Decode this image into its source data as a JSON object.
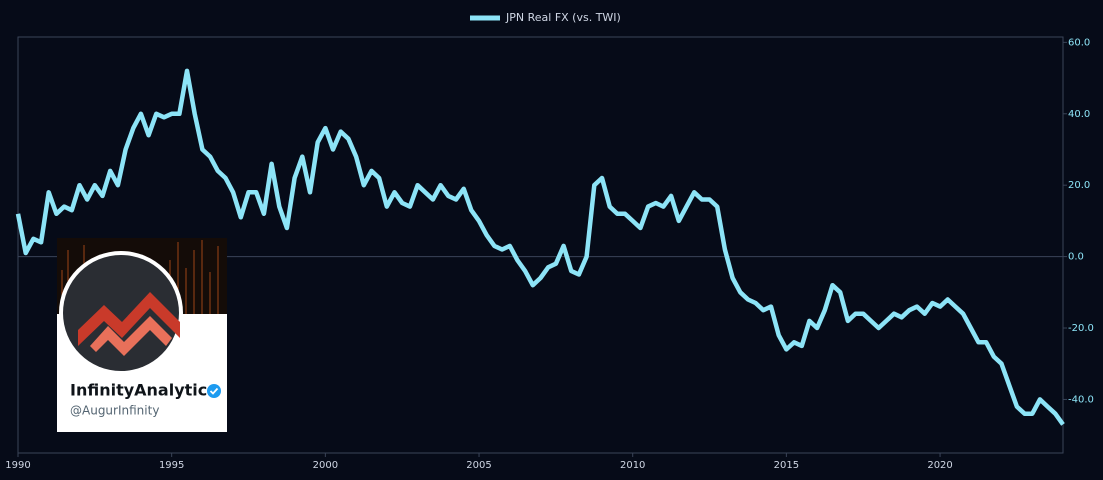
{
  "chart_data": {
    "type": "line",
    "x": [
      1990,
      1990.25,
      1990.5,
      1990.75,
      1991,
      1991.25,
      1991.5,
      1991.75,
      1992,
      1992.25,
      1992.5,
      1992.75,
      1993,
      1993.25,
      1993.5,
      1993.75,
      1994,
      1994.25,
      1994.5,
      1994.75,
      1995,
      1995.25,
      1995.5,
      1995.75,
      1996,
      1996.25,
      1996.5,
      1996.75,
      1997,
      1997.25,
      1997.5,
      1997.75,
      1998,
      1998.25,
      1998.5,
      1998.75,
      1999,
      1999.25,
      1999.5,
      1999.75,
      2000,
      2000.25,
      2000.5,
      2000.75,
      2001,
      2001.25,
      2001.5,
      2001.75,
      2002,
      2002.25,
      2002.5,
      2002.75,
      2003,
      2003.25,
      2003.5,
      2003.75,
      2004,
      2004.25,
      2004.5,
      2004.75,
      2005,
      2005.25,
      2005.5,
      2005.75,
      2006,
      2006.25,
      2006.5,
      2006.75,
      2007,
      2007.25,
      2007.5,
      2007.75,
      2008,
      2008.25,
      2008.5,
      2008.75,
      2009,
      2009.25,
      2009.5,
      2009.75,
      2010,
      2010.25,
      2010.5,
      2010.75,
      2011,
      2011.25,
      2011.5,
      2011.75,
      2012,
      2012.25,
      2012.5,
      2012.75,
      2013,
      2013.25,
      2013.5,
      2013.75,
      2014,
      2014.25,
      2014.5,
      2014.75,
      2015,
      2015.25,
      2015.5,
      2015.75,
      2016,
      2016.25,
      2016.5,
      2016.75,
      2017,
      2017.25,
      2017.5,
      2017.75,
      2018,
      2018.25,
      2018.5,
      2018.75,
      2019,
      2019.25,
      2019.5,
      2019.75,
      2020,
      2020.25,
      2020.5,
      2020.75,
      2021,
      2021.25,
      2021.5,
      2021.75,
      2022,
      2022.25,
      2022.5,
      2022.75,
      2023,
      2023.25,
      2023.5,
      2023.75,
      2024
    ],
    "series": [
      {
        "name": "JPN Real FX (vs. TWI)",
        "color": "#8de4f7",
        "axis": "y2",
        "values": [
          12,
          1,
          5,
          4,
          18,
          12,
          14,
          13,
          20,
          16,
          20,
          17,
          24,
          20,
          30,
          36,
          40,
          34,
          40,
          39,
          40,
          40,
          52,
          40,
          30,
          28,
          24,
          22,
          18,
          11,
          18,
          18,
          12,
          26,
          14,
          8,
          22,
          28,
          18,
          32,
          36,
          30,
          35,
          33,
          28,
          20,
          24,
          22,
          14,
          18,
          15,
          14,
          20,
          18,
          16,
          20,
          17,
          16,
          19,
          13,
          10,
          6,
          3,
          2,
          3,
          -1,
          -4,
          -8,
          -6,
          -3,
          -2,
          3,
          -4,
          -5,
          0,
          20,
          22,
          14,
          12,
          12,
          10,
          8,
          14,
          15,
          14,
          17,
          10,
          14,
          18,
          16,
          16,
          14,
          2,
          -6,
          -10,
          -12,
          -13,
          -15,
          -14,
          -22,
          -26,
          -24,
          -25,
          -18,
          -20,
          -15,
          -8,
          -10,
          -18,
          -16,
          -16,
          -18,
          -20,
          -18,
          -16,
          -17,
          -15,
          -14,
          -16,
          -13,
          -14,
          -12,
          -14,
          -16,
          -20,
          -24,
          -24,
          -28,
          -30,
          -36,
          -42,
          -44,
          -44,
          -40,
          -42,
          -44,
          -47
        ]
      }
    ],
    "xlim": [
      1990,
      2024
    ],
    "xticks": [
      1990,
      1995,
      2000,
      2005,
      2010,
      2015,
      2020
    ],
    "y2lim": [
      -55,
      61.5
    ],
    "y2ticks": [
      {
        "value": -40,
        "label": "-40.0"
      },
      {
        "value": -20,
        "label": "-20.0"
      },
      {
        "value": 0,
        "label": "0.0"
      },
      {
        "value": 20,
        "label": "20.0"
      },
      {
        "value": 40,
        "label": "40.0"
      },
      {
        "value": 60,
        "label": "60.0"
      }
    ],
    "zero_line": true,
    "legend": "top"
  },
  "watermark": {
    "name": "InfinityAnalytics",
    "handle": "@AugurInfinity"
  }
}
